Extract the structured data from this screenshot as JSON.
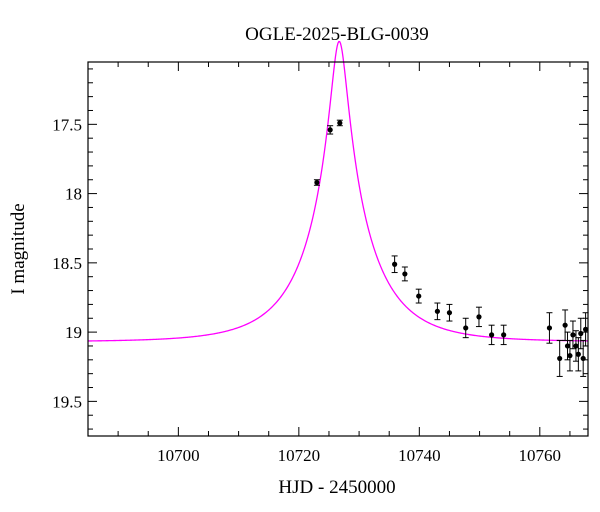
{
  "chart_data": {
    "type": "scatter",
    "title": "OGLE-2025-BLG-0039",
    "xlabel": "HJD - 2450000",
    "ylabel": "I magnitude",
    "xlim": [
      10685,
      10768
    ],
    "ylim": [
      19.75,
      17.05
    ],
    "y_inverted": true,
    "grid": false,
    "x_ticks": [
      {
        "value": 10700,
        "label": "10700"
      },
      {
        "value": 10720,
        "label": "10720"
      },
      {
        "value": 10740,
        "label": "10740"
      },
      {
        "value": 10760,
        "label": "10760"
      }
    ],
    "y_ticks": [
      {
        "value": 17.5,
        "label": "17.5"
      },
      {
        "value": 18,
        "label": "18"
      },
      {
        "value": 18.5,
        "label": "18.5"
      },
      {
        "value": 19,
        "label": "19"
      },
      {
        "value": 19.5,
        "label": "19.5"
      }
    ],
    "colors": {
      "model": "#ff00ff",
      "points": "#000000"
    },
    "model_curve": {
      "description_type": "point-lens fit",
      "t0": 10726.7,
      "tE": 10.5,
      "u0": 0.122,
      "baseline_mag": 19.07,
      "blend_fraction": 0.88
    },
    "series": [
      {
        "x": [
          10723.0,
          10725.2,
          10726.8,
          10735.9,
          10737.6,
          10739.9,
          10743.0,
          10745.0,
          10747.7,
          10749.9,
          10752.0,
          10754.0,
          10761.6,
          10763.3,
          10764.2,
          10764.6,
          10765.0,
          10765.5,
          10766.0,
          10766.4,
          10766.8,
          10767.2,
          10767.6
        ],
        "y": [
          17.92,
          17.54,
          17.49,
          18.51,
          18.58,
          18.74,
          18.85,
          18.86,
          18.97,
          18.89,
          19.02,
          19.02,
          18.97,
          19.19,
          18.95,
          19.1,
          19.17,
          19.02,
          19.1,
          19.16,
          19.01,
          19.19,
          18.98
        ],
        "err": [
          0.02,
          0.03,
          0.02,
          0.06,
          0.05,
          0.05,
          0.06,
          0.06,
          0.07,
          0.07,
          0.07,
          0.07,
          0.11,
          0.13,
          0.11,
          0.1,
          0.11,
          0.1,
          0.11,
          0.12,
          0.11,
          0.13,
          0.12
        ]
      }
    ]
  }
}
